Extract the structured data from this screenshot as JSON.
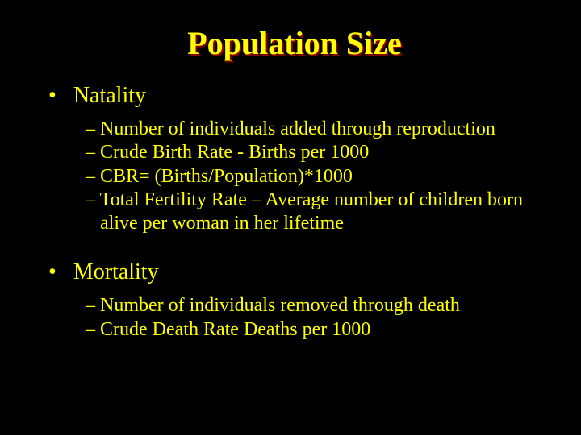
{
  "slide": {
    "title": "Population Size",
    "background_color": "#000000",
    "text_color": "#ffff00",
    "title_shadow_color": "#8b0000",
    "title_fontsize": 40,
    "main_bullet_fontsize": 28,
    "sub_bullet_fontsize": 24,
    "font_family": "Times New Roman",
    "sections": [
      {
        "heading": "Natality",
        "items": [
          "Number of individuals added through reproduction",
          "Crude Birth Rate - Births per 1000",
          "CBR= (Births/Population)*1000",
          "Total Fertility Rate – Average number of children born alive per woman in her lifetime"
        ]
      },
      {
        "heading": "Mortality",
        "items": [
          "Number of individuals removed through death",
          "Crude Death Rate Deaths per 1000"
        ]
      }
    ]
  }
}
